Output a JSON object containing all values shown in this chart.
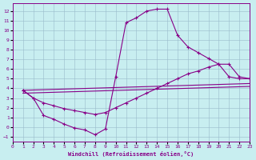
{
  "bg_color": "#c8eef0",
  "line_color": "#880088",
  "grid_color": "#99bbcc",
  "xlim": [
    0,
    23
  ],
  "ylim": [
    -1.5,
    12.8
  ],
  "xticks": [
    0,
    1,
    2,
    3,
    4,
    5,
    6,
    7,
    8,
    9,
    10,
    11,
    12,
    13,
    14,
    15,
    16,
    17,
    18,
    19,
    20,
    21,
    22,
    23
  ],
  "yticks": [
    -1,
    0,
    1,
    2,
    3,
    4,
    5,
    6,
    7,
    8,
    9,
    10,
    11,
    12
  ],
  "xlabel": "Windchill (Refroidissement éolien,°C)",
  "curve1_x": [
    1,
    2,
    3,
    4,
    5,
    6,
    7,
    8,
    9,
    10,
    11,
    12,
    13,
    14,
    15,
    16,
    17,
    18,
    19,
    20,
    21,
    22,
    23
  ],
  "curve1_y": [
    3.8,
    3.0,
    1.2,
    0.8,
    0.3,
    -0.1,
    -0.3,
    -0.8,
    -0.2,
    5.2,
    10.8,
    11.3,
    12.0,
    12.2,
    12.2,
    9.5,
    8.3,
    7.7,
    7.1,
    6.5,
    5.2,
    5.0,
    5.0
  ],
  "curve2_x": [
    1,
    2,
    3,
    4,
    5,
    6,
    7,
    8,
    9,
    10,
    11,
    12,
    13,
    14,
    15,
    16,
    17,
    18,
    19,
    20,
    21,
    22,
    23
  ],
  "curve2_y": [
    3.8,
    3.0,
    2.5,
    2.2,
    1.9,
    1.7,
    1.5,
    1.3,
    1.5,
    2.0,
    2.5,
    3.0,
    3.5,
    4.0,
    4.5,
    5.0,
    5.5,
    5.8,
    6.2,
    6.5,
    6.5,
    5.2,
    5.0
  ],
  "line3_x": [
    1,
    23
  ],
  "line3_y": [
    3.8,
    4.5
  ],
  "line4_x": [
    1,
    23
  ],
  "line4_y": [
    3.5,
    4.2
  ]
}
